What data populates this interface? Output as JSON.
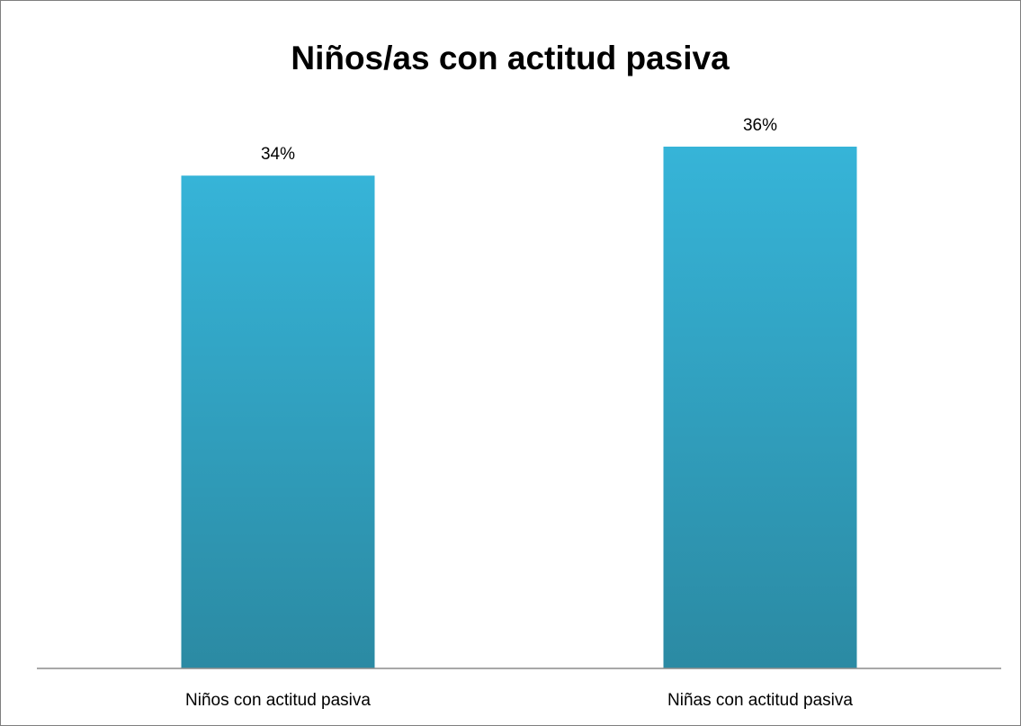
{
  "chart_data": {
    "type": "bar",
    "title": "Niños/as con actitud pasiva",
    "categories": [
      "Niños con actitud pasiva",
      "Niñas con actitud pasiva"
    ],
    "values": [
      34,
      36
    ],
    "value_labels": [
      "34%",
      "36%"
    ],
    "unit": "%",
    "xlabel": "",
    "ylabel": "",
    "ylim": [
      0,
      40
    ],
    "grid": false,
    "legend": "none",
    "bar_color_top": "#36b4d8",
    "bar_color_bottom": "#2b8aa3",
    "axis_color": "#8c8c8c"
  }
}
